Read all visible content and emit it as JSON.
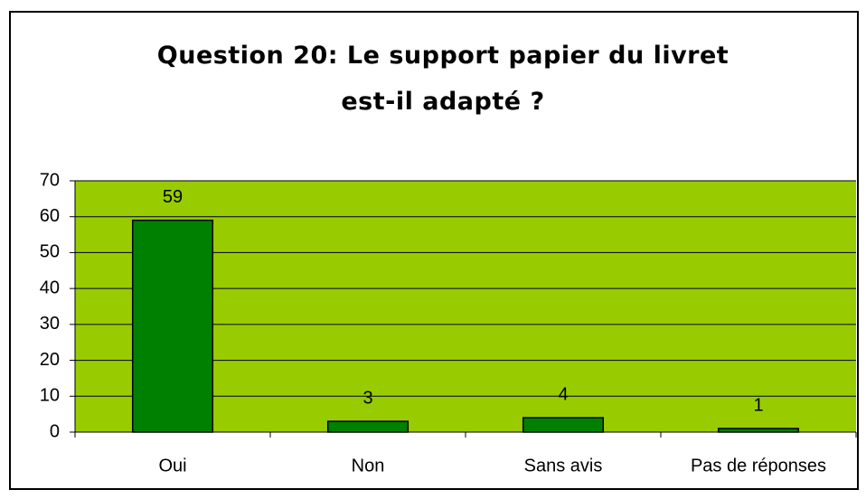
{
  "chart_data": {
    "type": "bar",
    "title": "Question 20: Le support papier du livret est-il adapté ?",
    "categories": [
      "Oui",
      "Non",
      "Sans avis",
      "Pas de réponses"
    ],
    "values": [
      59,
      3,
      4,
      1
    ],
    "color": "#008000",
    "background": "#99cc00",
    "ylim": [
      0,
      70
    ],
    "yticks": [
      0,
      10,
      20,
      30,
      40,
      50,
      60,
      70
    ],
    "grid": true
  }
}
